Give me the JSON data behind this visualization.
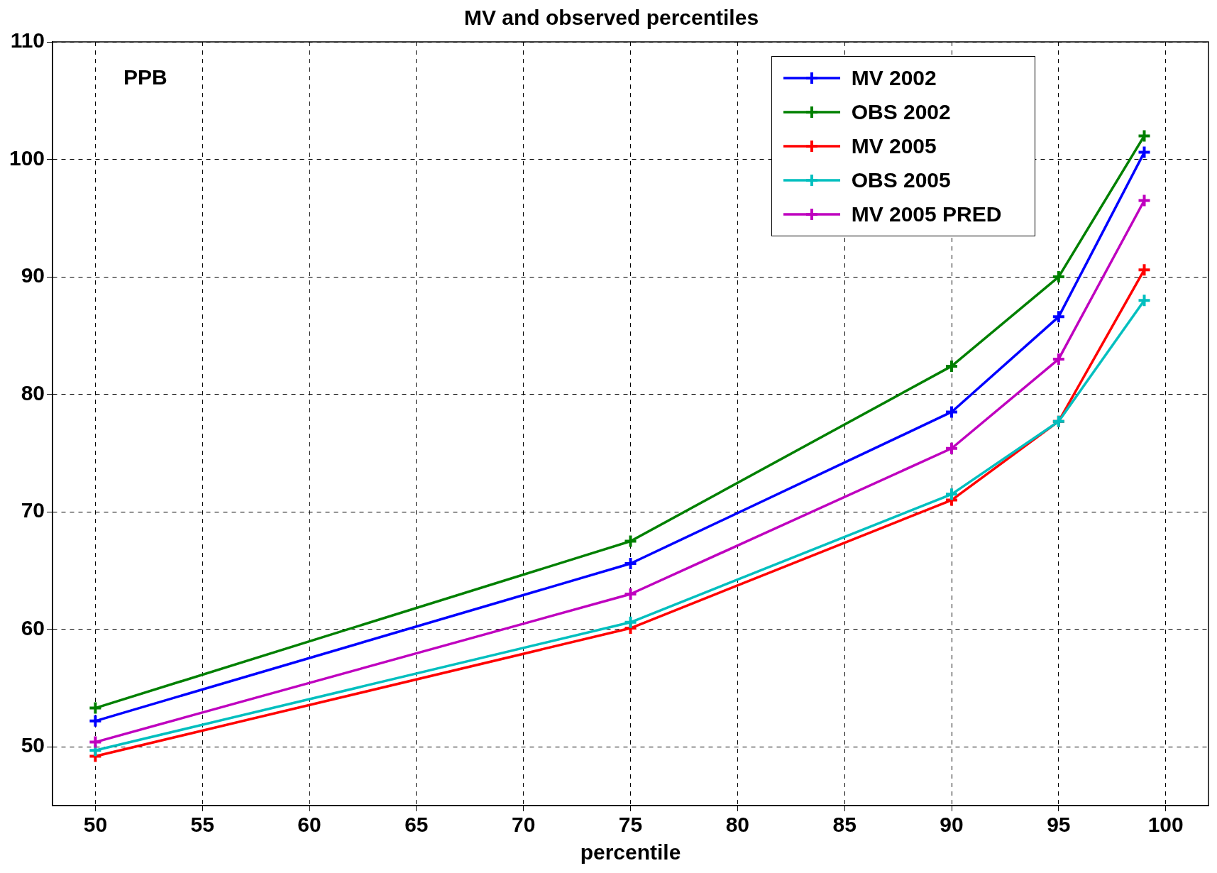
{
  "chart_data": {
    "type": "line",
    "title": "MV and observed percentiles",
    "xlabel": "percentile",
    "annotations": [
      "PPB"
    ],
    "x": [
      50,
      75,
      90,
      95,
      99
    ],
    "series": [
      {
        "name": "MV 2002",
        "color": "#0000ff",
        "values": [
          52.2,
          65.6,
          78.5,
          86.6,
          100.6
        ]
      },
      {
        "name": "OBS 2002",
        "color": "#008000",
        "values": [
          53.3,
          67.5,
          82.4,
          90.0,
          102.0
        ]
      },
      {
        "name": "MV 2005",
        "color": "#ff0000",
        "values": [
          49.2,
          60.1,
          71.0,
          77.7,
          90.6
        ]
      },
      {
        "name": "OBS 2005",
        "color": "#00bfbf",
        "values": [
          49.7,
          60.6,
          71.5,
          77.7,
          88.0
        ]
      },
      {
        "name": "MV 2005 PRED",
        "color": "#bf00bf",
        "values": [
          50.4,
          63.0,
          75.4,
          83.0,
          96.5
        ]
      }
    ],
    "xlim": [
      48,
      102
    ],
    "xticks": [
      50,
      55,
      60,
      65,
      70,
      75,
      80,
      85,
      90,
      95,
      100
    ],
    "ylim": [
      45,
      110
    ],
    "yticks": [
      50,
      60,
      70,
      80,
      90,
      100,
      110
    ],
    "grid": true,
    "legend": "top right",
    "marker": "cross",
    "line_style": "solid"
  }
}
